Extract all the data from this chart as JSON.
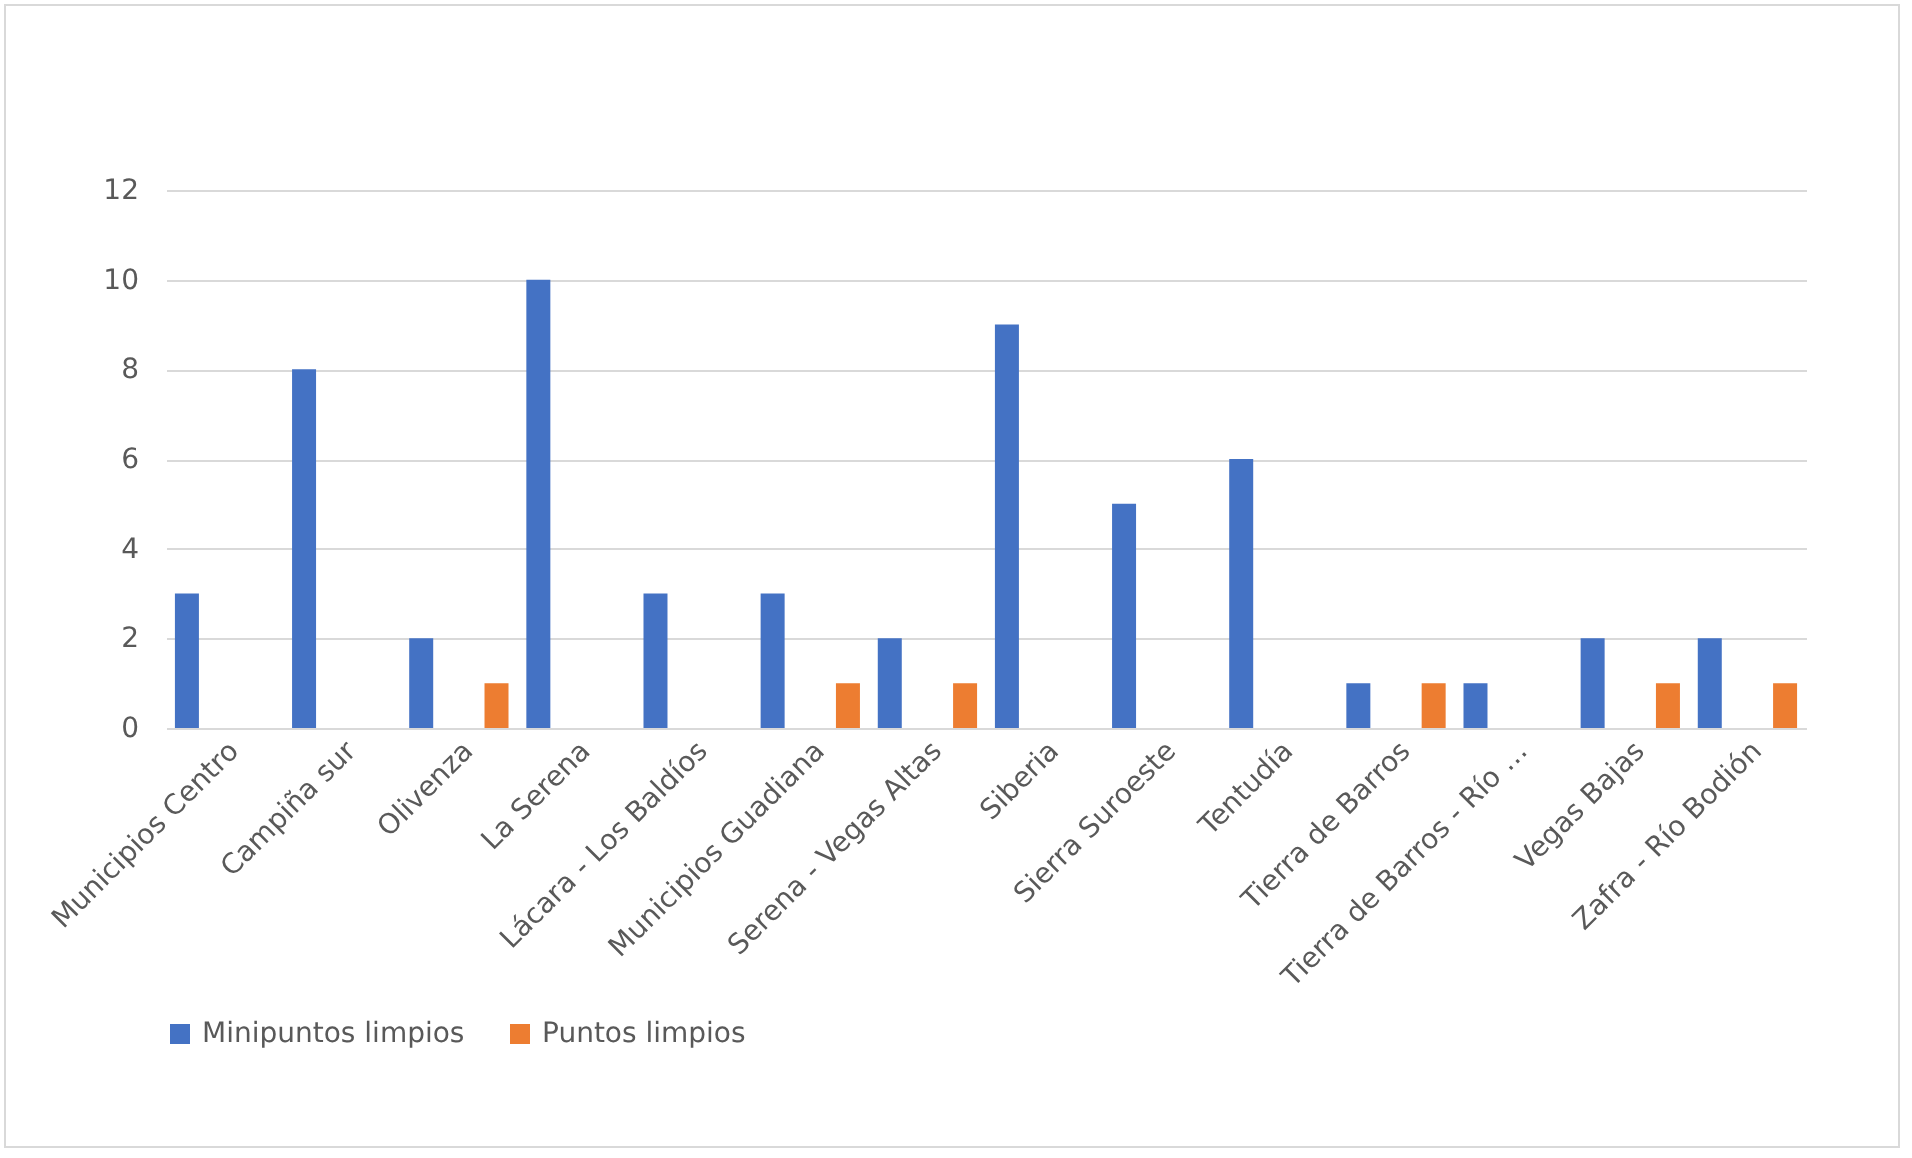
{
  "chart_data": {
    "type": "bar",
    "categories": [
      "Municipios Centro",
      "Campiña sur",
      "Olivenza",
      "La Serena",
      "Lácara - Los Baldíos",
      "Municipios Guadiana",
      "Serena - Vegas Altas",
      "Siberia",
      "Sierra Suroeste",
      "Tentudía",
      "Tierra de Barros",
      "Tierra de Barros - Río …",
      "Vegas Bajas",
      "Zafra - Río Bodión"
    ],
    "series": [
      {
        "name": "Minipuntos limpios",
        "color": "#4472c4",
        "values": [
          3,
          8,
          2,
          10,
          3,
          3,
          2,
          9,
          5,
          6,
          1,
          1,
          2,
          2
        ]
      },
      {
        "name": "Puntos limpios",
        "color": "#ed7d31",
        "values": [
          null,
          null,
          1,
          null,
          null,
          1,
          1,
          null,
          null,
          null,
          1,
          null,
          1,
          1
        ]
      }
    ],
    "ylim": [
      0,
      12
    ],
    "yticks": [
      0,
      2,
      4,
      6,
      8,
      10,
      12
    ],
    "grid": "y",
    "legend": "bottom"
  }
}
